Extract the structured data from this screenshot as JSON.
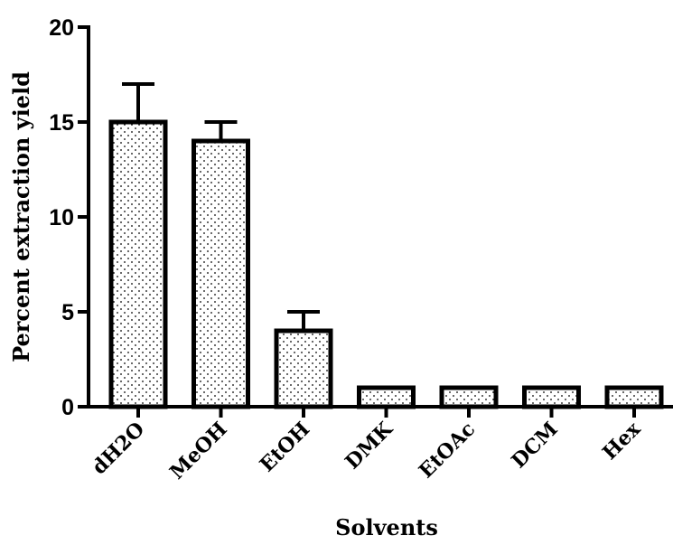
{
  "chart_data": {
    "type": "bar",
    "title": "",
    "xlabel": "Solvents",
    "ylabel": "Percent extraction yield",
    "categories": [
      "dH2O",
      "MeOH",
      "EtOH",
      "DMK",
      "EtOAc",
      "DCM",
      "Hex"
    ],
    "values": [
      15,
      14,
      4,
      1,
      1,
      1,
      1
    ],
    "error_upper": [
      2,
      1,
      1,
      0,
      0,
      0,
      0
    ],
    "ylim": [
      0,
      20
    ],
    "yticks": [
      "0",
      "5",
      "10",
      "15",
      "20"
    ],
    "grid": false,
    "legend": "none",
    "bar_pattern": "dotted",
    "bar_fill_color": "#ffffff",
    "bar_stroke_color": "#000000"
  }
}
